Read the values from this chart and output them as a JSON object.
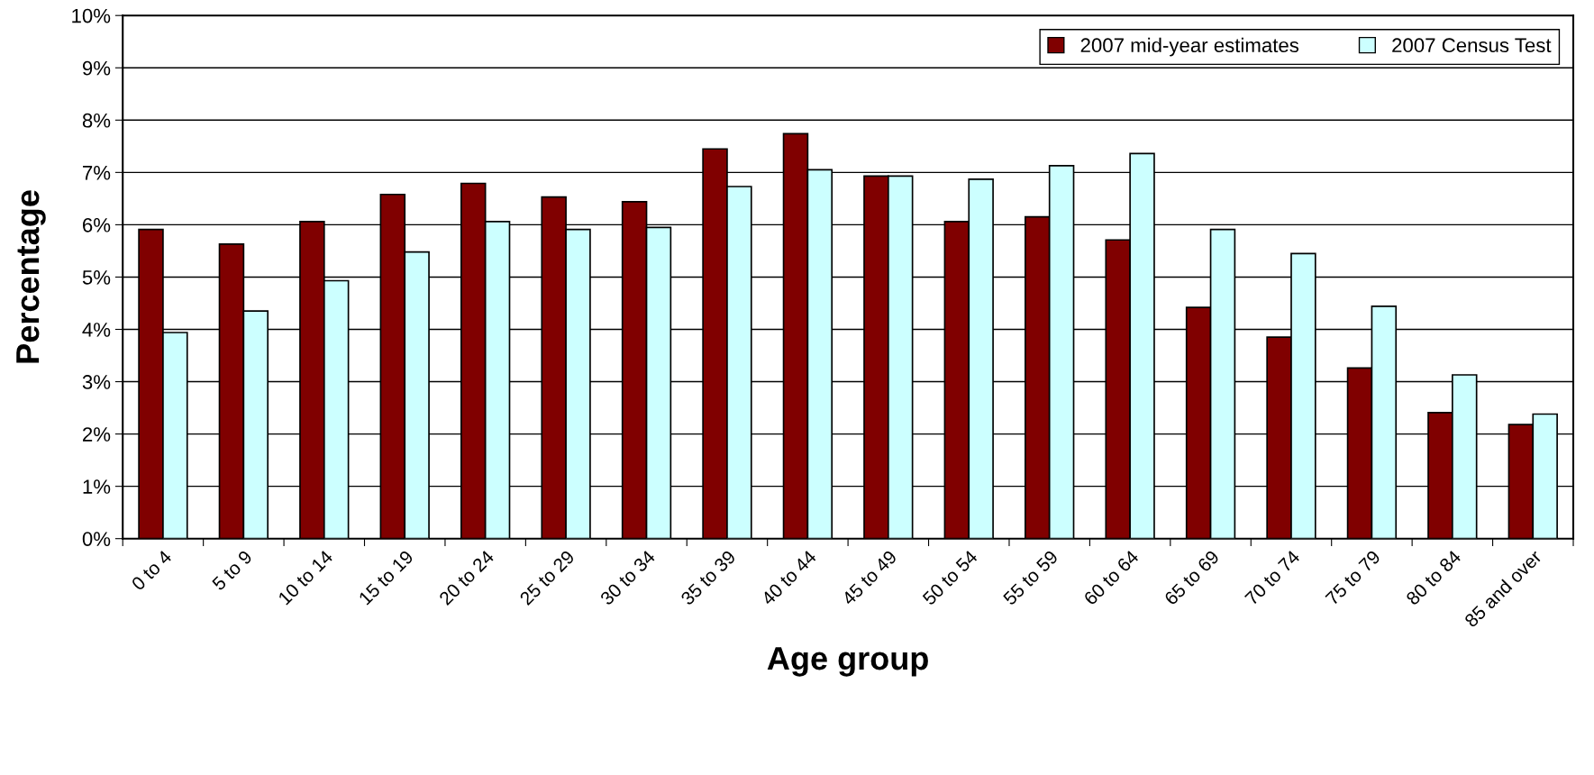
{
  "chart_data": {
    "type": "bar",
    "xlabel": "Age group",
    "ylabel": "Percentage",
    "categories": [
      "0 to 4",
      "5 to 9",
      "10 to 14",
      "15 to 19",
      "20 to 24",
      "25 to 29",
      "30 to 34",
      "35 to 39",
      "40 to 44",
      "45 to 49",
      "50 to 54",
      "55 to 59",
      "60 to 64",
      "65 to 69",
      "70 to 74",
      "75 to 79",
      "80 to 84",
      "85 and over"
    ],
    "series": [
      {
        "name": "2007 mid-year estimates",
        "color": "#800000",
        "values": [
          5.91,
          5.63,
          6.06,
          6.58,
          6.79,
          6.53,
          6.44,
          7.45,
          7.74,
          6.93,
          6.06,
          6.15,
          5.71,
          4.42,
          3.85,
          3.26,
          2.41,
          2.18
        ]
      },
      {
        "name": "2007 Census Test",
        "color": "#ccffff",
        "values": [
          3.94,
          4.35,
          4.93,
          5.48,
          6.06,
          5.91,
          5.95,
          6.73,
          7.05,
          6.93,
          6.87,
          7.13,
          7.36,
          5.91,
          5.45,
          4.44,
          3.13,
          2.38
        ]
      }
    ],
    "ylim": [
      0,
      10
    ],
    "yticks": [
      {
        "value": 0,
        "label": "0%"
      },
      {
        "value": 1,
        "label": "1%"
      },
      {
        "value": 2,
        "label": "2%"
      },
      {
        "value": 3,
        "label": "3%"
      },
      {
        "value": 4,
        "label": "4%"
      },
      {
        "value": 5,
        "label": "5%"
      },
      {
        "value": 6,
        "label": "6%"
      },
      {
        "value": 7,
        "label": "7%"
      },
      {
        "value": 8,
        "label": "8%"
      },
      {
        "value": 9,
        "label": "9%"
      },
      {
        "value": 10,
        "label": "10%"
      }
    ],
    "grid": "y",
    "legend": "top right"
  }
}
